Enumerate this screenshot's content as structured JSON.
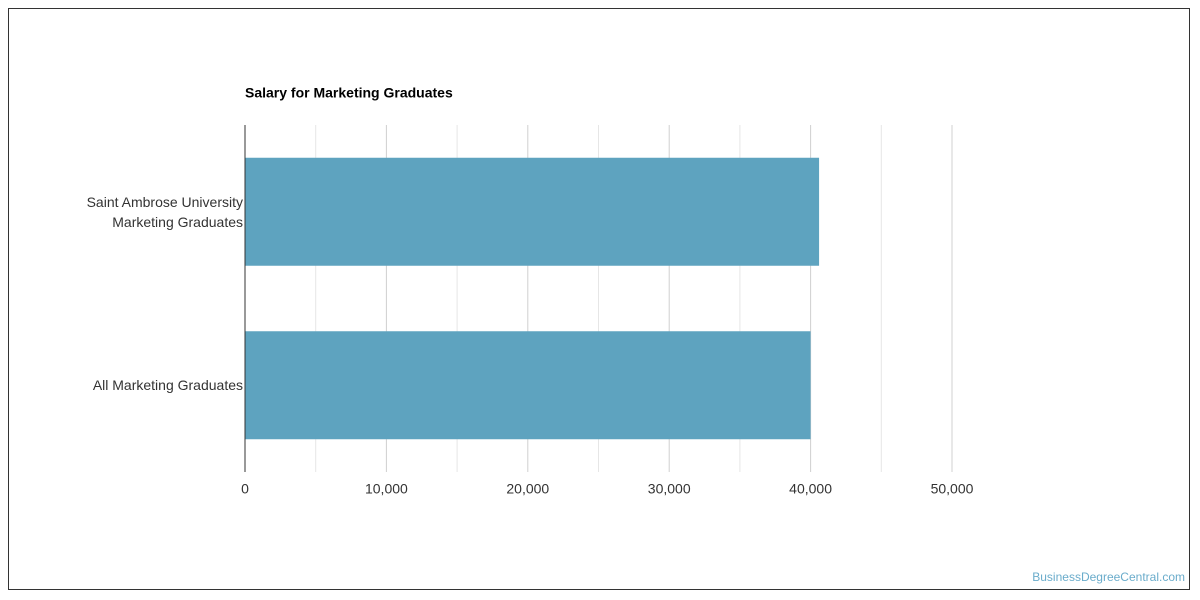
{
  "chart_data": {
    "type": "bar",
    "orientation": "horizontal",
    "title": "Salary for Marketing Graduates",
    "categories": [
      "Saint Ambrose University Marketing Graduates",
      "All Marketing Graduates"
    ],
    "values": [
      40600,
      40000
    ],
    "color": "#5ea3bf",
    "xlim": [
      0,
      50000
    ],
    "xticks": [
      0,
      {
        "value": 10000,
        "label": "10,000"
      },
      {
        "value": 20000,
        "label": "20,000"
      },
      {
        "value": 30000,
        "label": "30,000"
      },
      {
        "value": 40000,
        "label": "40,000"
      },
      {
        "value": 50000,
        "label": "50,000"
      }
    ],
    "grid": true,
    "minor_grid": true
  },
  "footer": {
    "source": "BusinessDegreeCentral.com"
  }
}
